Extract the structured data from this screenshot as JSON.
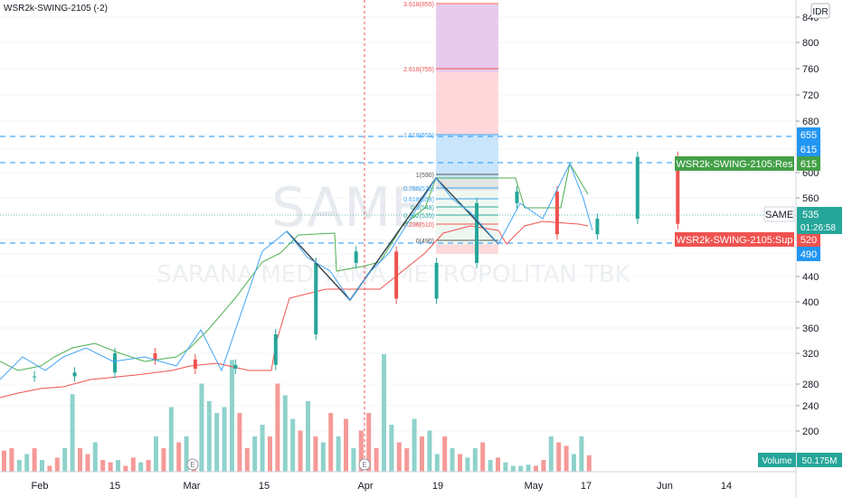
{
  "indicator_title": "WSR2k-SWING-2105 (-2)",
  "currency": "IDR",
  "watermark": {
    "symbol": "SAME",
    "name": "SARANA MEDITAMA METROPOLITAN TBK"
  },
  "colors": {
    "up": "#26a69a",
    "down": "#ef5350",
    "upper_band": "#4caf50",
    "lower_band": "#ef5350",
    "zigzag": "#37474f",
    "swing": "#42a5f5",
    "dashed": "#2196f3",
    "vertical_marker": "#ef5350",
    "last_price_badge": "#26a69a",
    "res_badge": "#43a047",
    "sup_badge": "#ef5350"
  },
  "chart_data": {
    "type": "candlestick",
    "y_axis": {
      "ticks": [
        200,
        240,
        280,
        320,
        360,
        400,
        440,
        490,
        520,
        560,
        600,
        615,
        655,
        680,
        720,
        760,
        800,
        840
      ],
      "scale": "log"
    },
    "x_axis": {
      "ticks": [
        "Feb",
        "15",
        "Mar",
        "15",
        "Apr",
        "19",
        "May",
        "17",
        "Jun",
        "14"
      ]
    },
    "price_series_approx": [
      {
        "date": "2021-01-25",
        "close": 290
      },
      {
        "date": "2021-02-01",
        "close": 295
      },
      {
        "date": "2021-02-08",
        "close": 320
      },
      {
        "date": "2021-02-15",
        "close": 312
      },
      {
        "date": "2021-02-22",
        "close": 300
      },
      {
        "date": "2021-03-01",
        "close": 305
      },
      {
        "date": "2021-03-08",
        "close": 350
      },
      {
        "date": "2021-03-15",
        "close": 470
      },
      {
        "date": "2021-03-22",
        "close": 495
      },
      {
        "date": "2021-03-29",
        "close": 405
      },
      {
        "date": "2021-04-05",
        "close": 470
      },
      {
        "date": "2021-04-12",
        "close": 555
      },
      {
        "date": "2021-04-19",
        "close": 570
      },
      {
        "date": "2021-04-26",
        "close": 525
      },
      {
        "date": "2021-05-03",
        "close": 540
      },
      {
        "date": "2021-05-10",
        "close": 610
      },
      {
        "date": "2021-05-17",
        "close": 535
      }
    ],
    "volume_bars": [
      {
        "date": "2021-01-25",
        "dir": "down",
        "rel": 0.18
      },
      {
        "date": "2021-02-01",
        "dir": "up",
        "rel": 0.2
      },
      {
        "date": "2021-02-08",
        "dir": "up",
        "rel": 0.66
      },
      {
        "date": "2021-02-15",
        "dir": "down",
        "rel": 0.1
      },
      {
        "date": "2021-02-22",
        "dir": "up",
        "rel": 0.25
      },
      {
        "date": "2021-03-01",
        "dir": "up",
        "rel": 0.55
      },
      {
        "date": "2021-03-08",
        "dir": "up",
        "rel": 0.85
      },
      {
        "date": "2021-03-15",
        "dir": "up",
        "rel": 0.95
      },
      {
        "date": "2021-03-22",
        "dir": "down",
        "rel": 0.75
      },
      {
        "date": "2021-03-29",
        "dir": "down",
        "rel": 0.35
      },
      {
        "date": "2021-04-05",
        "dir": "up",
        "rel": 0.5
      },
      {
        "date": "2021-04-12",
        "dir": "up",
        "rel": 1.0
      },
      {
        "date": "2021-04-19",
        "dir": "up",
        "rel": 0.3
      },
      {
        "date": "2021-04-26",
        "dir": "down",
        "rel": 0.22
      },
      {
        "date": "2021-05-03",
        "dir": "up",
        "rel": 0.12
      },
      {
        "date": "2021-05-10",
        "dir": "down",
        "rel": 0.3
      },
      {
        "date": "2021-05-17",
        "dir": "up",
        "rel": 0.14
      }
    ],
    "fib_levels": [
      {
        "label": "3.618(855)",
        "value": 855
      },
      {
        "label": "2.618(755)",
        "value": 755
      },
      {
        "label": "1.618(655)",
        "value": 655
      },
      {
        "label": "1(590)",
        "value": 590
      },
      {
        "label": "0.786(572)",
        "value": 572
      },
      {
        "label": "0.618(558)",
        "value": 558
      },
      {
        "label": "0.5(548)",
        "value": 548
      },
      {
        "label": "0.382(535)",
        "value": 535
      },
      {
        "label": "0.236(510)",
        "value": 510
      },
      {
        "label": "0(490)",
        "value": 490
      }
    ],
    "horizontal_levels": [
      {
        "value": 655,
        "label": "655"
      },
      {
        "value": 615,
        "label": "615"
      },
      {
        "value": 520,
        "label": "520"
      },
      {
        "value": 490,
        "label": "490"
      }
    ],
    "badges": [
      {
        "text": "WSR2k-SWING-2105:Res",
        "value_text": "615",
        "value": 615,
        "kind": "res"
      },
      {
        "text": "WSR2k-SWING-2105:Sup",
        "value_text": "520",
        "value": 520,
        "kind": "sup"
      },
      {
        "text": "SAME",
        "value_text": "535",
        "value": 535,
        "kind": "last"
      },
      {
        "text": "",
        "value_text": "01:26:58",
        "value": 535,
        "kind": "countdown"
      }
    ],
    "volume_label": {
      "text": "Volume",
      "value": "50.175M"
    },
    "vertical_marker": {
      "date": "2021-04-01",
      "label": "E"
    },
    "bottom_marker": {
      "date": "2021-03-10",
      "label": "E"
    }
  }
}
